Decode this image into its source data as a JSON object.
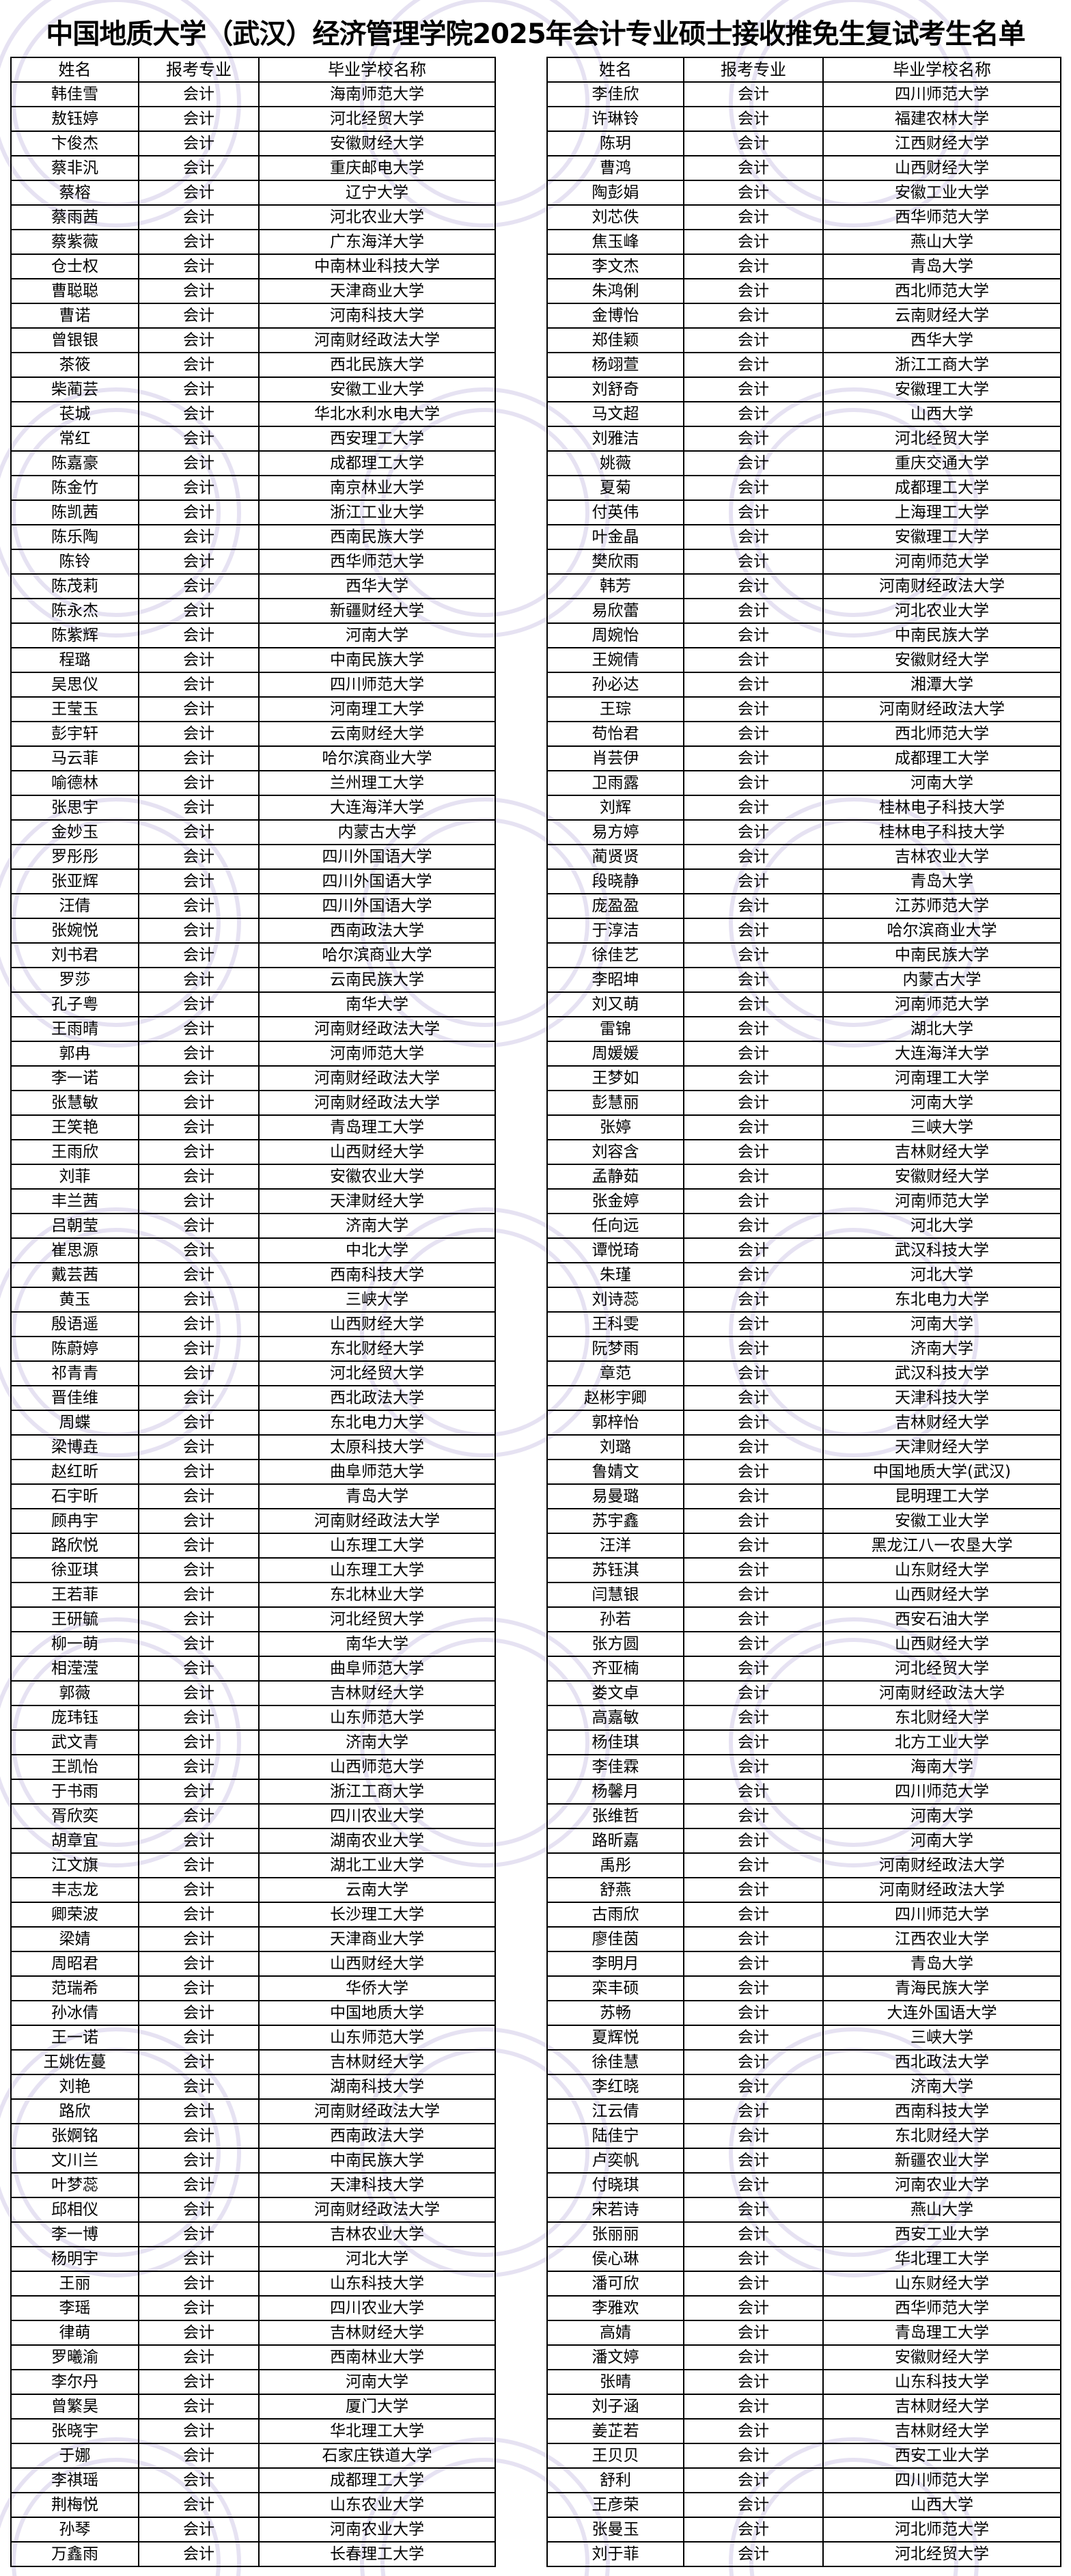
{
  "title": "中国地质大学（武汉）经济管理学院2025年会计专业硕士接收推免生复试考生名单",
  "headers": [
    "姓名",
    "报考专业",
    "毕业学校名称"
  ],
  "watermark_color": "#e6e2f2",
  "left_rows": [
    [
      "韩佳雪",
      "会计",
      "海南师范大学"
    ],
    [
      "敖钰婷",
      "会计",
      "河北经贸大学"
    ],
    [
      "卞俊杰",
      "会计",
      "安徽财经大学"
    ],
    [
      "蔡非汎",
      "会计",
      "重庆邮电大学"
    ],
    [
      "蔡榕",
      "会计",
      "辽宁大学"
    ],
    [
      "蔡雨茜",
      "会计",
      "河北农业大学"
    ],
    [
      "蔡紫薇",
      "会计",
      "广东海洋大学"
    ],
    [
      "仓士权",
      "会计",
      "中南林业科技大学"
    ],
    [
      "曹聪聪",
      "会计",
      "天津商业大学"
    ],
    [
      "曹诺",
      "会计",
      "河南科技大学"
    ],
    [
      "曾银银",
      "会计",
      "河南财经政法大学"
    ],
    [
      "茶筱",
      "会计",
      "西北民族大学"
    ],
    [
      "柴蔺芸",
      "会计",
      "安徽工业大学"
    ],
    [
      "苌城",
      "会计",
      "华北水利水电大学"
    ],
    [
      "常红",
      "会计",
      "西安理工大学"
    ],
    [
      "陈嘉豪",
      "会计",
      "成都理工大学"
    ],
    [
      "陈金竹",
      "会计",
      "南京林业大学"
    ],
    [
      "陈凯茜",
      "会计",
      "浙江工业大学"
    ],
    [
      "陈乐陶",
      "会计",
      "西南民族大学"
    ],
    [
      "陈铃",
      "会计",
      "西华师范大学"
    ],
    [
      "陈茂莉",
      "会计",
      "西华大学"
    ],
    [
      "陈永杰",
      "会计",
      "新疆财经大学"
    ],
    [
      "陈紫辉",
      "会计",
      "河南大学"
    ],
    [
      "程璐",
      "会计",
      "中南民族大学"
    ],
    [
      "吴思仪",
      "会计",
      "四川师范大学"
    ],
    [
      "王莹玉",
      "会计",
      "河南理工大学"
    ],
    [
      "彭宇轩",
      "会计",
      "云南财经大学"
    ],
    [
      "马云菲",
      "会计",
      "哈尔滨商业大学"
    ],
    [
      "喻德林",
      "会计",
      "兰州理工大学"
    ],
    [
      "张思宇",
      "会计",
      "大连海洋大学"
    ],
    [
      "金妙玉",
      "会计",
      "内蒙古大学"
    ],
    [
      "罗彤彤",
      "会计",
      "四川外国语大学"
    ],
    [
      "张亚辉",
      "会计",
      "四川外国语大学"
    ],
    [
      "汪倩",
      "会计",
      "四川外国语大学"
    ],
    [
      "张婉悦",
      "会计",
      "西南政法大学"
    ],
    [
      "刘书君",
      "会计",
      "哈尔滨商业大学"
    ],
    [
      "罗莎",
      "会计",
      "云南民族大学"
    ],
    [
      "孔子粤",
      "会计",
      "南华大学"
    ],
    [
      "王雨晴",
      "会计",
      "河南财经政法大学"
    ],
    [
      "郭冉",
      "会计",
      "河南师范大学"
    ],
    [
      "李一诺",
      "会计",
      "河南财经政法大学"
    ],
    [
      "张慧敏",
      "会计",
      "河南财经政法大学"
    ],
    [
      "王笑艳",
      "会计",
      "青岛理工大学"
    ],
    [
      "王雨欣",
      "会计",
      "山西财经大学"
    ],
    [
      "刘菲",
      "会计",
      "安徽农业大学"
    ],
    [
      "丰兰茜",
      "会计",
      "天津财经大学"
    ],
    [
      "吕朝莹",
      "会计",
      "济南大学"
    ],
    [
      "崔思源",
      "会计",
      "中北大学"
    ],
    [
      "戴芸茜",
      "会计",
      "西南科技大学"
    ],
    [
      "黄玉",
      "会计",
      "三峡大学"
    ],
    [
      "殷语遥",
      "会计",
      "山西财经大学"
    ],
    [
      "陈蔚婷",
      "会计",
      "东北财经大学"
    ],
    [
      "祁青青",
      "会计",
      "河北经贸大学"
    ],
    [
      "晋佳维",
      "会计",
      "西北政法大学"
    ],
    [
      "周蝶",
      "会计",
      "东北电力大学"
    ],
    [
      "梁博垚",
      "会计",
      "太原科技大学"
    ],
    [
      "赵红昕",
      "会计",
      "曲阜师范大学"
    ],
    [
      "石宇昕",
      "会计",
      "青岛大学"
    ],
    [
      "顾冉宇",
      "会计",
      "河南财经政法大学"
    ],
    [
      "路欣悦",
      "会计",
      "山东理工大学"
    ],
    [
      "徐亚琪",
      "会计",
      "山东理工大学"
    ],
    [
      "王若菲",
      "会计",
      "东北林业大学"
    ],
    [
      "王研毓",
      "会计",
      "河北经贸大学"
    ],
    [
      "柳一萌",
      "会计",
      "南华大学"
    ],
    [
      "相滢滢",
      "会计",
      "曲阜师范大学"
    ],
    [
      "郭薇",
      "会计",
      "吉林财经大学"
    ],
    [
      "庞玮钰",
      "会计",
      "山东师范大学"
    ],
    [
      "武文青",
      "会计",
      "济南大学"
    ],
    [
      "王凯怡",
      "会计",
      "山西师范大学"
    ],
    [
      "于书雨",
      "会计",
      "浙江工商大学"
    ],
    [
      "胥欣奕",
      "会计",
      "四川农业大学"
    ],
    [
      "胡章宜",
      "会计",
      "湖南农业大学"
    ],
    [
      "江文旗",
      "会计",
      "湖北工业大学"
    ],
    [
      "丰志龙",
      "会计",
      "云南大学"
    ],
    [
      "卿荣波",
      "会计",
      "长沙理工大学"
    ],
    [
      "梁婧",
      "会计",
      "天津商业大学"
    ],
    [
      "周昭君",
      "会计",
      "山西财经大学"
    ],
    [
      "范瑞希",
      "会计",
      "华侨大学"
    ],
    [
      "孙冰倩",
      "会计",
      "中国地质大学"
    ],
    [
      "王一诺",
      "会计",
      "山东师范大学"
    ],
    [
      "王姚佐蔓",
      "会计",
      "吉林财经大学"
    ],
    [
      "刘艳",
      "会计",
      "湖南科技大学"
    ],
    [
      "路欣",
      "会计",
      "河南财经政法大学"
    ],
    [
      "张婀铭",
      "会计",
      "西南政法大学"
    ],
    [
      "文川兰",
      "会计",
      "中南民族大学"
    ],
    [
      "叶梦蕊",
      "会计",
      "天津科技大学"
    ],
    [
      "邱相仪",
      "会计",
      "河南财经政法大学"
    ],
    [
      "李一博",
      "会计",
      "吉林农业大学"
    ],
    [
      "杨明宇",
      "会计",
      "河北大学"
    ],
    [
      "王丽",
      "会计",
      "山东科技大学"
    ],
    [
      "李瑶",
      "会计",
      "四川农业大学"
    ],
    [
      "律萌",
      "会计",
      "吉林财经大学"
    ],
    [
      "罗曦渝",
      "会计",
      "西南林业大学"
    ],
    [
      "李尔丹",
      "会计",
      "河南大学"
    ],
    [
      "曾繁昊",
      "会计",
      "厦门大学"
    ],
    [
      "张晓宇",
      "会计",
      "华北理工大学"
    ],
    [
      "于娜",
      "会计",
      "石家庄铁道大学"
    ],
    [
      "李祺瑶",
      "会计",
      "成都理工大学"
    ],
    [
      "荆梅悦",
      "会计",
      "山东农业大学"
    ],
    [
      "孙琴",
      "会计",
      "河南农业大学"
    ],
    [
      "万鑫雨",
      "会计",
      "长春理工大学"
    ]
  ],
  "right_rows": [
    [
      "李佳欣",
      "会计",
      "四川师范大学"
    ],
    [
      "许琳铃",
      "会计",
      "福建农林大学"
    ],
    [
      "陈玥",
      "会计",
      "江西财经大学"
    ],
    [
      "曹鸿",
      "会计",
      "山西财经大学"
    ],
    [
      "陶彭娟",
      "会计",
      "安徽工业大学"
    ],
    [
      "刘芯佚",
      "会计",
      "西华师范大学"
    ],
    [
      "焦玉峰",
      "会计",
      "燕山大学"
    ],
    [
      "李文杰",
      "会计",
      "青岛大学"
    ],
    [
      "朱鸿俐",
      "会计",
      "西北师范大学"
    ],
    [
      "金博怡",
      "会计",
      "云南财经大学"
    ],
    [
      "郑佳颖",
      "会计",
      "西华大学"
    ],
    [
      "杨翊萱",
      "会计",
      "浙江工商大学"
    ],
    [
      "刘舒奇",
      "会计",
      "安徽理工大学"
    ],
    [
      "马文超",
      "会计",
      "山西大学"
    ],
    [
      "刘雅洁",
      "会计",
      "河北经贸大学"
    ],
    [
      "姚薇",
      "会计",
      "重庆交通大学"
    ],
    [
      "夏菊",
      "会计",
      "成都理工大学"
    ],
    [
      "付英伟",
      "会计",
      "上海理工大学"
    ],
    [
      "叶金晶",
      "会计",
      "安徽理工大学"
    ],
    [
      "樊欣雨",
      "会计",
      "河南师范大学"
    ],
    [
      "韩芳",
      "会计",
      "河南财经政法大学"
    ],
    [
      "易欣蕾",
      "会计",
      "河北农业大学"
    ],
    [
      "周婉怡",
      "会计",
      "中南民族大学"
    ],
    [
      "王婉倩",
      "会计",
      "安徽财经大学"
    ],
    [
      "孙必达",
      "会计",
      "湘潭大学"
    ],
    [
      "王琮",
      "会计",
      "河南财经政法大学"
    ],
    [
      "苟怡君",
      "会计",
      "西北师范大学"
    ],
    [
      "肖芸伊",
      "会计",
      "成都理工大学"
    ],
    [
      "卫雨露",
      "会计",
      "河南大学"
    ],
    [
      "刘辉",
      "会计",
      "桂林电子科技大学"
    ],
    [
      "易方婷",
      "会计",
      "桂林电子科技大学"
    ],
    [
      "蔺贤贤",
      "会计",
      "吉林农业大学"
    ],
    [
      "段晓静",
      "会计",
      "青岛大学"
    ],
    [
      "庞盈盈",
      "会计",
      "江苏师范大学"
    ],
    [
      "于淳洁",
      "会计",
      "哈尔滨商业大学"
    ],
    [
      "徐佳艺",
      "会计",
      "中南民族大学"
    ],
    [
      "李昭坤",
      "会计",
      "内蒙古大学"
    ],
    [
      "刘又萌",
      "会计",
      "河南师范大学"
    ],
    [
      "雷锦",
      "会计",
      "湖北大学"
    ],
    [
      "周媛媛",
      "会计",
      "大连海洋大学"
    ],
    [
      "王梦如",
      "会计",
      "河南理工大学"
    ],
    [
      "彭慧丽",
      "会计",
      "河南大学"
    ],
    [
      "张婷",
      "会计",
      "三峡大学"
    ],
    [
      "刘容含",
      "会计",
      "吉林财经大学"
    ],
    [
      "孟静茹",
      "会计",
      "安徽财经大学"
    ],
    [
      "张金婷",
      "会计",
      "河南师范大学"
    ],
    [
      "任向远",
      "会计",
      "河北大学"
    ],
    [
      "谭悦琦",
      "会计",
      "武汉科技大学"
    ],
    [
      "朱瑾",
      "会计",
      "河北大学"
    ],
    [
      "刘诗蕊",
      "会计",
      "东北电力大学"
    ],
    [
      "王科雯",
      "会计",
      "河南大学"
    ],
    [
      "阮梦雨",
      "会计",
      "济南大学"
    ],
    [
      "章范",
      "会计",
      "武汉科技大学"
    ],
    [
      "赵彬宇卿",
      "会计",
      "天津科技大学"
    ],
    [
      "郭梓怡",
      "会计",
      "吉林财经大学"
    ],
    [
      "刘璐",
      "会计",
      "天津财经大学"
    ],
    [
      "鲁婧文",
      "会计",
      "中国地质大学(武汉)"
    ],
    [
      "易曼璐",
      "会计",
      "昆明理工大学"
    ],
    [
      "苏宇鑫",
      "会计",
      "安徽工业大学"
    ],
    [
      "汪洋",
      "会计",
      "黑龙江八一农垦大学"
    ],
    [
      "苏钰淇",
      "会计",
      "山东财经大学"
    ],
    [
      "闫慧银",
      "会计",
      "山西财经大学"
    ],
    [
      "孙若",
      "会计",
      "西安石油大学"
    ],
    [
      "张方圆",
      "会计",
      "山西财经大学"
    ],
    [
      "齐亚楠",
      "会计",
      "河北经贸大学"
    ],
    [
      "娄文卓",
      "会计",
      "河南财经政法大学"
    ],
    [
      "高嘉敏",
      "会计",
      "东北财经大学"
    ],
    [
      "杨佳琪",
      "会计",
      "北方工业大学"
    ],
    [
      "李佳霖",
      "会计",
      "海南大学"
    ],
    [
      "杨馨月",
      "会计",
      "四川师范大学"
    ],
    [
      "张维哲",
      "会计",
      "河南大学"
    ],
    [
      "路昕嘉",
      "会计",
      "河南大学"
    ],
    [
      "禹彤",
      "会计",
      "河南财经政法大学"
    ],
    [
      "舒燕",
      "会计",
      "河南财经政法大学"
    ],
    [
      "古雨欣",
      "会计",
      "四川师范大学"
    ],
    [
      "廖佳茵",
      "会计",
      "江西农业大学"
    ],
    [
      "李明月",
      "会计",
      "青岛大学"
    ],
    [
      "栾丰硕",
      "会计",
      "青海民族大学"
    ],
    [
      "苏畅",
      "会计",
      "大连外国语大学"
    ],
    [
      "夏辉悦",
      "会计",
      "三峡大学"
    ],
    [
      "徐佳慧",
      "会计",
      "西北政法大学"
    ],
    [
      "李红晓",
      "会计",
      "济南大学"
    ],
    [
      "江云倩",
      "会计",
      "西南科技大学"
    ],
    [
      "陆佳宁",
      "会计",
      "东北财经大学"
    ],
    [
      "卢奕帆",
      "会计",
      "新疆农业大学"
    ],
    [
      "付晓琪",
      "会计",
      "河南农业大学"
    ],
    [
      "宋若诗",
      "会计",
      "燕山大学"
    ],
    [
      "张丽丽",
      "会计",
      "西安工业大学"
    ],
    [
      "侯心琳",
      "会计",
      "华北理工大学"
    ],
    [
      "潘可欣",
      "会计",
      "山东财经大学"
    ],
    [
      "李雅欢",
      "会计",
      "西华师范大学"
    ],
    [
      "高婧",
      "会计",
      "青岛理工大学"
    ],
    [
      "潘文婷",
      "会计",
      "安徽财经大学"
    ],
    [
      "张晴",
      "会计",
      "山东科技大学"
    ],
    [
      "刘子涵",
      "会计",
      "吉林财经大学"
    ],
    [
      "姜芷若",
      "会计",
      "吉林财经大学"
    ],
    [
      "王贝贝",
      "会计",
      "西安工业大学"
    ],
    [
      "舒利",
      "会计",
      "四川师范大学"
    ],
    [
      "王彦荣",
      "会计",
      "山西大学"
    ],
    [
      "张曼玉",
      "会计",
      "河北师范大学"
    ],
    [
      "刘于菲",
      "会计",
      "河北经贸大学"
    ]
  ]
}
